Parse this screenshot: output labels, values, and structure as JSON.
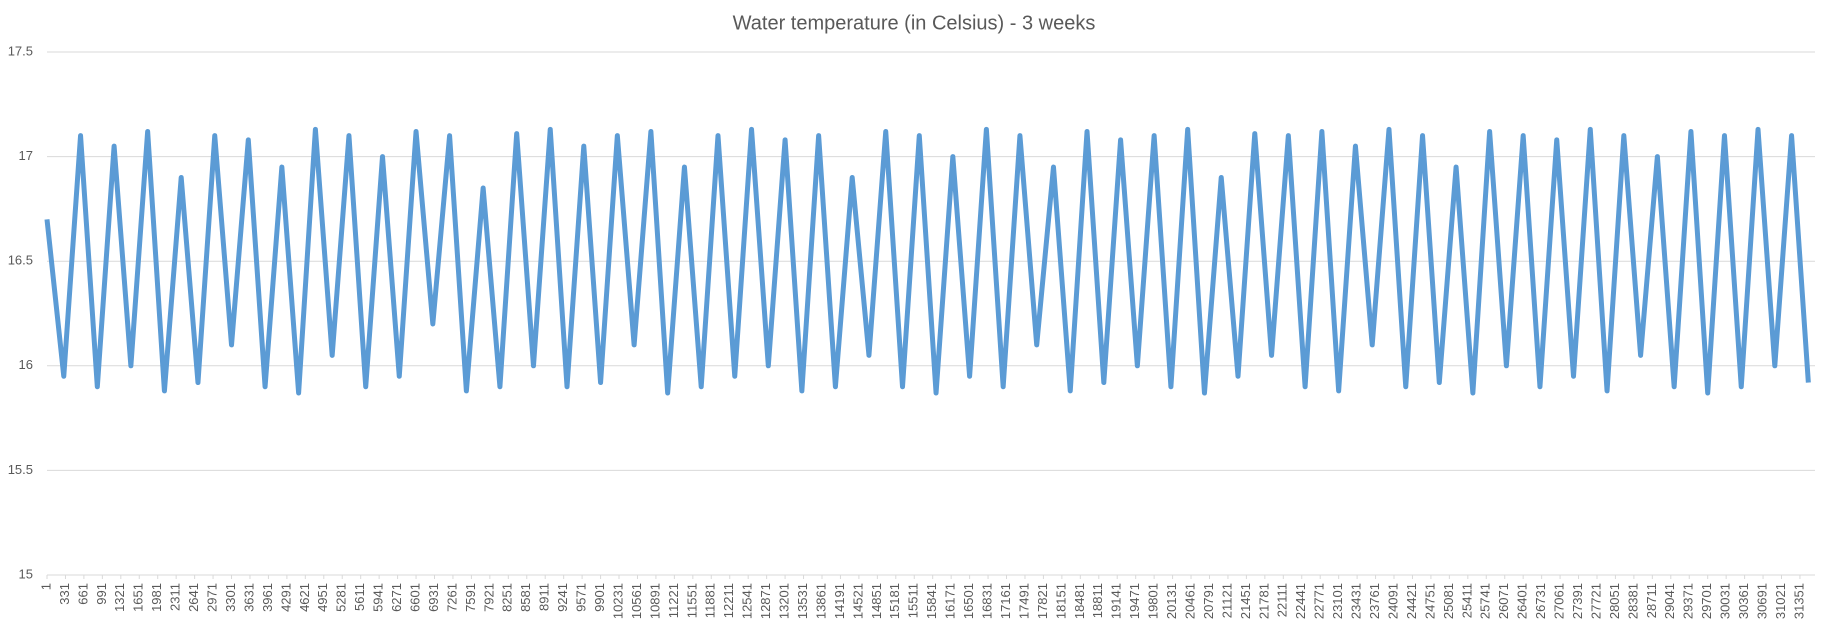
{
  "chart_data": {
    "type": "line",
    "title": "Water temperature (in Celsius) - 3 weeks",
    "x": [
      1,
      301,
      601,
      901,
      1201,
      1501,
      1801,
      2101,
      2401,
      2701,
      3001,
      3301,
      3601,
      3901,
      4201,
      4501,
      4801,
      5101,
      5401,
      5701,
      6001,
      6301,
      6601,
      6901,
      7201,
      7501,
      7801,
      8101,
      8401,
      8701,
      9001,
      9301,
      9601,
      9901,
      10201,
      10501,
      10801,
      11101,
      11401,
      11701,
      12001,
      12301,
      12601,
      12901,
      13201,
      13501,
      13801,
      14101,
      14401,
      14701,
      15001,
      15301,
      15601,
      15901,
      16201,
      16501,
      16801,
      17101,
      17401,
      17701,
      18001,
      18301,
      18601,
      18901,
      19201,
      19501,
      19801,
      20101,
      20401,
      20701,
      21001,
      21301,
      21601,
      21901,
      22201,
      22501,
      22801,
      23101,
      23401,
      23701,
      24001,
      24301,
      24601,
      24901,
      25201,
      25501,
      25801,
      26101,
      26401,
      26701,
      27001,
      27301,
      27601,
      27901,
      28201,
      28501,
      28801,
      29101,
      29401,
      29701,
      30001,
      30301,
      30601,
      30901,
      31201,
      31501
    ],
    "series": [
      {
        "color": "#5b9bd5",
        "values": [
          16.7,
          15.95,
          17.1,
          15.9,
          17.05,
          16.0,
          17.12,
          15.88,
          16.9,
          15.92,
          17.1,
          16.1,
          17.08,
          15.9,
          16.95,
          15.87,
          17.13,
          16.05,
          17.1,
          15.9,
          17.0,
          15.95,
          17.12,
          16.2,
          17.1,
          15.88,
          16.85,
          15.9,
          17.11,
          16.0,
          17.13,
          15.9,
          17.05,
          15.92,
          17.1,
          16.1,
          17.12,
          15.87,
          16.95,
          15.9,
          17.1,
          15.95,
          17.13,
          16.0,
          17.08,
          15.88,
          17.1,
          15.9,
          16.9,
          16.05,
          17.12,
          15.9,
          17.1,
          15.87,
          17.0,
          15.95,
          17.13,
          15.9,
          17.1,
          16.1,
          16.95,
          15.88,
          17.12,
          15.92,
          17.08,
          16.0,
          17.1,
          15.9,
          17.13,
          15.87,
          16.9,
          15.95,
          17.11,
          16.05,
          17.1,
          15.9,
          17.12,
          15.88,
          17.05,
          16.1,
          17.13,
          15.9,
          17.1,
          15.92,
          16.95,
          15.87,
          17.12,
          16.0,
          17.1,
          15.9,
          17.08,
          15.95,
          17.13,
          15.88,
          17.1,
          16.05,
          17.0,
          15.9,
          17.12,
          15.87,
          17.1,
          15.9,
          17.13,
          16.0,
          17.1,
          15.92
        ]
      }
    ],
    "xlim": [
      1,
      31620
    ],
    "xticks": [
      1,
      331,
      661,
      991,
      1321,
      1651,
      1981,
      2311,
      2641,
      2971,
      3301,
      3631,
      3961,
      4291,
      4621,
      4951,
      5281,
      5611,
      5941,
      6271,
      6601,
      6931,
      7261,
      7591,
      7921,
      8251,
      8581,
      8911,
      9241,
      9571,
      9901,
      10231,
      10561,
      10891,
      11221,
      11551,
      11881,
      12211,
      12541,
      12871,
      13201,
      13531,
      13861,
      14191,
      14521,
      14851,
      15181,
      15511,
      15841,
      16171,
      16501,
      16831,
      17161,
      17491,
      17821,
      18151,
      18481,
      18811,
      19141,
      19471,
      19801,
      20131,
      20461,
      20791,
      21121,
      21451,
      21781,
      22111,
      22441,
      22771,
      23101,
      23431,
      23761,
      24091,
      24421,
      24751,
      25081,
      25411,
      25741,
      26071,
      26401,
      26731,
      27061,
      27391,
      27721,
      28051,
      28381,
      28711,
      29041,
      29371,
      29701,
      30031,
      30361,
      30691,
      31021,
      31351
    ],
    "ylim": [
      15,
      17.5
    ],
    "yticks": [
      15,
      15.5,
      16,
      16.5,
      17,
      17.5
    ],
    "grid": true
  }
}
